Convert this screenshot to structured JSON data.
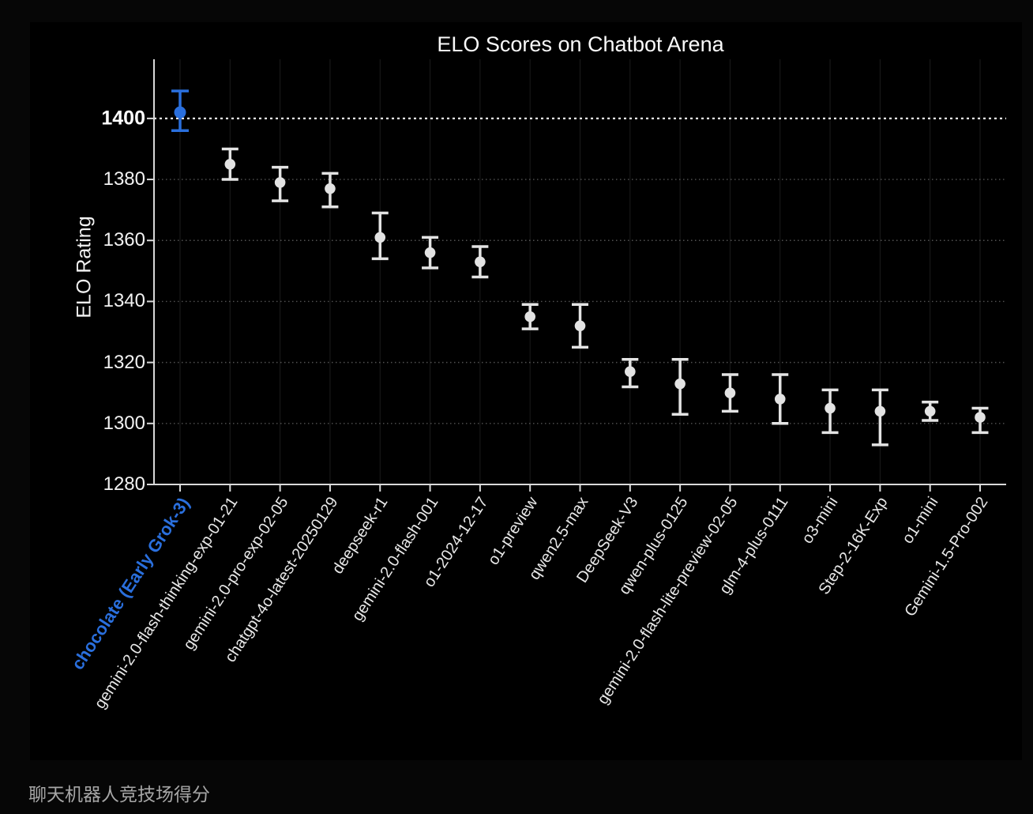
{
  "caption": {
    "text": "聊天机器人竞技场得分"
  },
  "colors": {
    "background": "#000000",
    "page_background": "#060606",
    "highlight": "#2a6fdd",
    "marker": "#e3e3e3",
    "spine": "#d9d9d9",
    "grid_dotted": "#ffffff",
    "grid_vertical": "#1b1b1b",
    "reference_line": "#f0f0f0",
    "tick_label": "#f2f2f2",
    "caption_text": "#a6a6a6"
  },
  "chart_data": {
    "type": "scatter",
    "title": "ELO Scores on Chatbot Arena",
    "xlabel": "",
    "ylabel": "ELO Rating",
    "ylim": [
      1280,
      1419.4
    ],
    "yticks": [
      1280,
      1300,
      1320,
      1340,
      1360,
      1380,
      1400
    ],
    "grid": true,
    "legend": false,
    "reference_line": 1400,
    "series_note": "single series of ELO ratings with error bars; first point highlighted",
    "points": [
      {
        "label": "chocolate (Early Grok-3)",
        "value": 1402,
        "lo": 1396,
        "hi": 1409,
        "highlight": true
      },
      {
        "label": "gemini-2.0-flash-thinking-exp-01-21",
        "value": 1385,
        "lo": 1380,
        "hi": 1390,
        "highlight": false
      },
      {
        "label": "gemini-2.0-pro-exp-02-05",
        "value": 1379,
        "lo": 1373,
        "hi": 1384,
        "highlight": false
      },
      {
        "label": "chatgpt-4o-latest-20250129",
        "value": 1377,
        "lo": 1371,
        "hi": 1382,
        "highlight": false
      },
      {
        "label": "deepseek-r1",
        "value": 1361,
        "lo": 1354,
        "hi": 1369,
        "highlight": false
      },
      {
        "label": "gemini-2.0-flash-001",
        "value": 1356,
        "lo": 1351,
        "hi": 1361,
        "highlight": false
      },
      {
        "label": "o1-2024-12-17",
        "value": 1353,
        "lo": 1348,
        "hi": 1358,
        "highlight": false
      },
      {
        "label": "o1-preview",
        "value": 1335,
        "lo": 1331,
        "hi": 1339,
        "highlight": false
      },
      {
        "label": "qwen2.5-max",
        "value": 1332,
        "lo": 1325,
        "hi": 1339,
        "highlight": false
      },
      {
        "label": "DeepSeek-V3",
        "value": 1317,
        "lo": 1312,
        "hi": 1321,
        "highlight": false
      },
      {
        "label": "qwen-plus-0125",
        "value": 1313,
        "lo": 1303,
        "hi": 1321,
        "highlight": false
      },
      {
        "label": "gemini-2.0-flash-lite-preview-02-05",
        "value": 1310,
        "lo": 1304,
        "hi": 1316,
        "highlight": false
      },
      {
        "label": "glm-4-plus-0111",
        "value": 1308,
        "lo": 1300,
        "hi": 1316,
        "highlight": false
      },
      {
        "label": "o3-mini",
        "value": 1305,
        "lo": 1297,
        "hi": 1311,
        "highlight": false
      },
      {
        "label": "Step-2-16K-Exp",
        "value": 1304,
        "lo": 1293,
        "hi": 1311,
        "highlight": false
      },
      {
        "label": "o1-mini",
        "value": 1304,
        "lo": 1301,
        "hi": 1307,
        "highlight": false
      },
      {
        "label": "Gemini-1.5-Pro-002",
        "value": 1302,
        "lo": 1297,
        "hi": 1305,
        "highlight": false
      }
    ]
  }
}
